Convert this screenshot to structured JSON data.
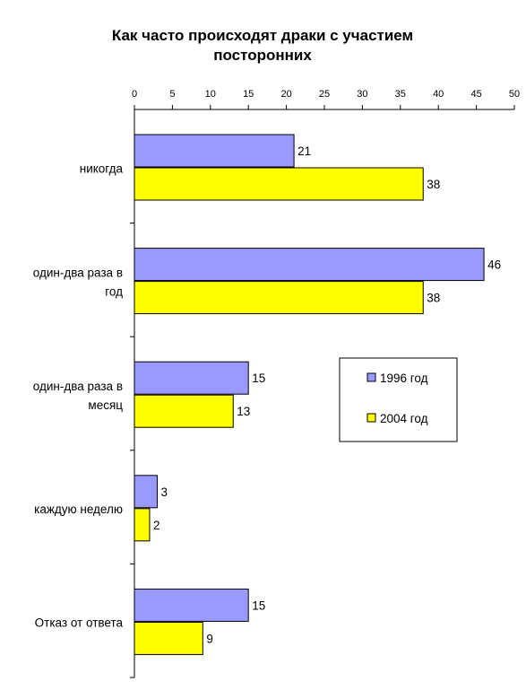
{
  "chart_data": {
    "type": "bar",
    "orientation": "horizontal",
    "title": "Как часто происходят драки с участием посторонних",
    "title_lines": [
      "Как часто происходят драки с участием",
      "посторонних"
    ],
    "categories": [
      "никогда",
      "один-два раза в год",
      "один-два раза в месяц",
      "каждую неделю",
      "Отказ от ответа"
    ],
    "category_lines": [
      [
        "никогда"
      ],
      [
        "один-два раза в",
        "год"
      ],
      [
        "один-два раза в",
        "месяц"
      ],
      [
        "каждую неделю"
      ],
      [
        "Отказ от ответа"
      ]
    ],
    "series": [
      {
        "name": "1996 год",
        "values": [
          21,
          46,
          15,
          3,
          15
        ],
        "color": "#9999ff"
      },
      {
        "name": "2004 год",
        "values": [
          38,
          38,
          13,
          2,
          9
        ],
        "color": "#ffff00"
      }
    ],
    "xlim": [
      0,
      50
    ],
    "xticks": [
      0,
      5,
      10,
      15,
      20,
      25,
      30,
      35,
      40,
      45,
      50
    ],
    "x_axis_position": "top",
    "legend_position": "right",
    "grid": false,
    "xlabel": "",
    "ylabel": ""
  }
}
